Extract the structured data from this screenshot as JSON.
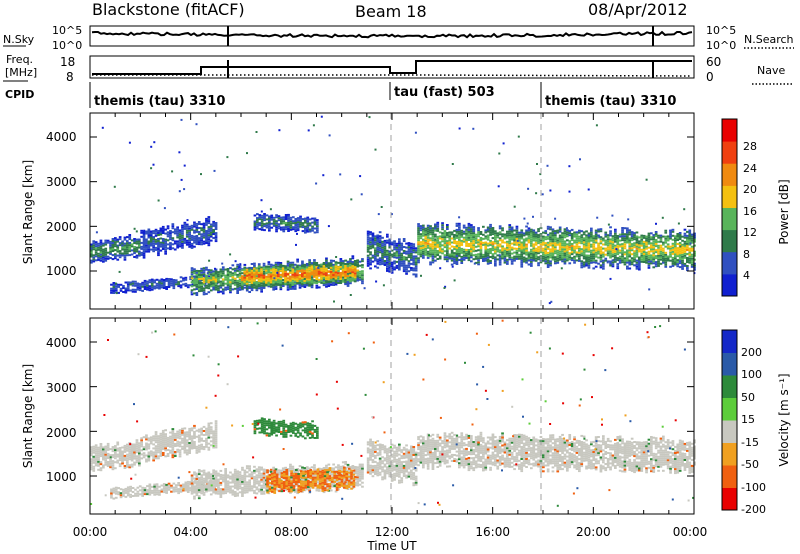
{
  "header": {
    "station": "Blackstone (fitACF)",
    "beam": "Beam 18",
    "date": "08/Apr/2012"
  },
  "noise_panel": {
    "left_label": "N.Sky",
    "left_ticks": [
      "10^5",
      "10^0"
    ],
    "right_label": "N.Search",
    "right_ticks": [
      "10^5",
      "10^0"
    ]
  },
  "freq_panel": {
    "left_label_1": "Freq.",
    "left_label_2": "[MHz]",
    "left_ticks": [
      "18",
      "8"
    ],
    "right_label": "Nave",
    "right_ticks": [
      "60",
      "0"
    ]
  },
  "cpid_panel": {
    "label": "CPID",
    "segments": [
      {
        "name": "themis (tau) 3310",
        "start_hour": 0,
        "end_hour": 12.0
      },
      {
        "name": "tau (fast) 503",
        "start_hour": 12.0,
        "end_hour": 18.0
      },
      {
        "name": "themis (tau) 3310",
        "start_hour": 18.0,
        "end_hour": 24.0
      }
    ]
  },
  "x_axis": {
    "label": "Time UT",
    "ticks": [
      "00:00",
      "04:00",
      "08:00",
      "12:00",
      "16:00",
      "20:00",
      "00:00"
    ]
  },
  "power_panel": {
    "ylabel": "Slant Range [km]",
    "yticks": [
      "1000",
      "2000",
      "3000",
      "4000"
    ],
    "colorbar_label": "Power [dB]",
    "colorbar_ticks": [
      "4",
      "8",
      "12",
      "16",
      "20",
      "24",
      "28"
    ]
  },
  "velocity_panel": {
    "ylabel": "Slant Range [km]",
    "yticks": [
      "1000",
      "2000",
      "3000",
      "4000"
    ],
    "colorbar_label": "Velocity [m s⁻¹]",
    "colorbar_ticks": [
      "200",
      "100",
      "50",
      "15",
      "-15",
      "-50",
      "-100",
      "-200"
    ]
  },
  "colors": {
    "power_scale": [
      "#1020d0",
      "#3050c0",
      "#2f7a4a",
      "#58b45a",
      "#f4c010",
      "#f08a10",
      "#f04010",
      "#e80000"
    ],
    "velocity_scale": [
      "#1428c8",
      "#2a5aa8",
      "#2d8a3a",
      "#5ccd3a",
      "#c8c8c0",
      "#f0a020",
      "#f06010",
      "#e80000"
    ],
    "dashed_line": "#a0a0a0"
  },
  "chart_data": [
    {
      "type": "heatmap",
      "title": "Power",
      "xlabel": "Time UT",
      "ylabel": "Slant Range [km]",
      "xlim": [
        0,
        24
      ],
      "ylim": [
        180,
        4600
      ],
      "colorbar_range": [
        0,
        30
      ],
      "bands": [
        {
          "t_start": 0.0,
          "t_end": 2.0,
          "range_start": 1150,
          "range_end": 1750,
          "range_center_start": 1400,
          "range_center_end": 1550,
          "value": 14
        },
        {
          "t_start": 2.0,
          "t_end": 5.0,
          "range_start": 1450,
          "range_end": 2200,
          "range_center_start": 1600,
          "range_center_end": 1900,
          "value": 10
        },
        {
          "t_start": 0.8,
          "t_end": 5.0,
          "range_start": 500,
          "range_end": 800,
          "range_center_start": 600,
          "range_center_end": 800,
          "value": 10
        },
        {
          "t_start": 4.0,
          "t_end": 10.8,
          "range_start": 550,
          "range_end": 1300,
          "range_center_start": 750,
          "range_center_end": 1000,
          "value": 18
        },
        {
          "t_start": 6.0,
          "t_end": 10.5,
          "range_start": 600,
          "range_end": 1200,
          "range_center_start": 850,
          "range_center_end": 950,
          "value": 27
        },
        {
          "t_start": 6.5,
          "t_end": 9.0,
          "range_start": 1800,
          "range_end": 2250,
          "range_center_start": 2100,
          "range_center_end": 2000,
          "value": 12
        },
        {
          "t_start": 11.0,
          "t_end": 13.0,
          "range_start": 1000,
          "range_end": 2000,
          "range_center_start": 1500,
          "range_center_end": 1200,
          "value": 12
        },
        {
          "t_start": 13.0,
          "t_end": 24.0,
          "range_start": 1200,
          "range_end": 2250,
          "range_center_start": 1600,
          "range_center_end": 1450,
          "value": 20
        }
      ]
    },
    {
      "type": "heatmap",
      "title": "Velocity",
      "xlabel": "Time UT",
      "ylabel": "Slant Range [km]",
      "xlim": [
        0,
        24
      ],
      "ylim": [
        180,
        4600
      ],
      "colorbar_range": [
        -200,
        200
      ],
      "bands": [
        {
          "t_start": 0.0,
          "t_end": 2.0,
          "range_start": 1050,
          "range_end": 1750,
          "range_center_start": 1400,
          "range_center_end": 1500,
          "value": 0
        },
        {
          "t_start": 2.0,
          "t_end": 5.0,
          "range_start": 1450,
          "range_end": 2200,
          "range_center_start": 1600,
          "range_center_end": 1900,
          "value": 0
        },
        {
          "t_start": 0.8,
          "t_end": 5.0,
          "range_start": 500,
          "range_end": 800,
          "range_center_start": 600,
          "range_center_end": 800,
          "value": 0
        },
        {
          "t_start": 4.0,
          "t_end": 10.8,
          "range_start": 550,
          "range_end": 1300,
          "range_center_start": 800,
          "range_center_end": 1000,
          "value": 0
        },
        {
          "t_start": 7.0,
          "t_end": 10.5,
          "range_start": 600,
          "range_end": 1200,
          "range_center_start": 850,
          "range_center_end": 950,
          "value": -50
        },
        {
          "t_start": 6.5,
          "t_end": 9.0,
          "range_start": 1800,
          "range_end": 2250,
          "range_center_start": 2100,
          "range_center_end": 2000,
          "value": 50
        },
        {
          "t_start": 11.0,
          "t_end": 13.0,
          "range_start": 1000,
          "range_end": 2000,
          "range_center_start": 1400,
          "range_center_end": 1200,
          "value": 0
        },
        {
          "t_start": 13.0,
          "t_end": 24.0,
          "range_start": 1250,
          "range_end": 2200,
          "range_center_start": 1550,
          "range_center_end": 1450,
          "value": 0
        }
      ]
    }
  ]
}
